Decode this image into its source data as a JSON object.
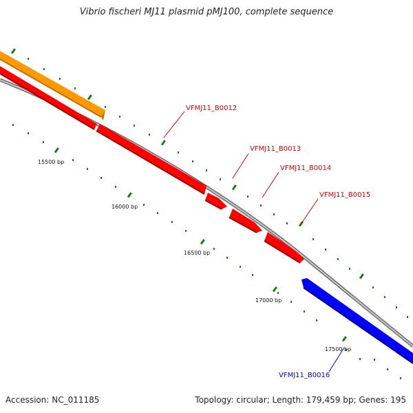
{
  "title": "Vibrio fischeri MJ11 plasmid pMJ100, complete sequence",
  "footer": {
    "accession": "Accession: NC_011185",
    "topology": "Topology: circular; Length: 179,459 bp; Genes: 195"
  },
  "ruler": {
    "labels": [
      "15500 bp",
      "16000 bp",
      "16500 bp",
      "17000 bp",
      "17500 bp"
    ]
  },
  "genes": [
    {
      "label": "VFMJ11_B0012",
      "color": "#ff0000",
      "strand": "forward"
    },
    {
      "label": "VFMJ11_B0013",
      "color": "#ff0000",
      "strand": "forward"
    },
    {
      "label": "VFMJ11_B0014",
      "color": "#ff0000",
      "strand": "forward"
    },
    {
      "label": "VFMJ11_B0015",
      "color": "#ff0000",
      "strand": "forward"
    },
    {
      "label": "VFMJ11_B0016",
      "color": "#0000ff",
      "strand": "reverse"
    }
  ],
  "colors": {
    "orange_feature": "#ff9900",
    "backbone": "#888888",
    "tick": "#1a7a1a",
    "red_gene": "#ff0000",
    "blue_gene": "#0000ff",
    "label_red": "#e00000",
    "label_blue": "#0000cc"
  }
}
